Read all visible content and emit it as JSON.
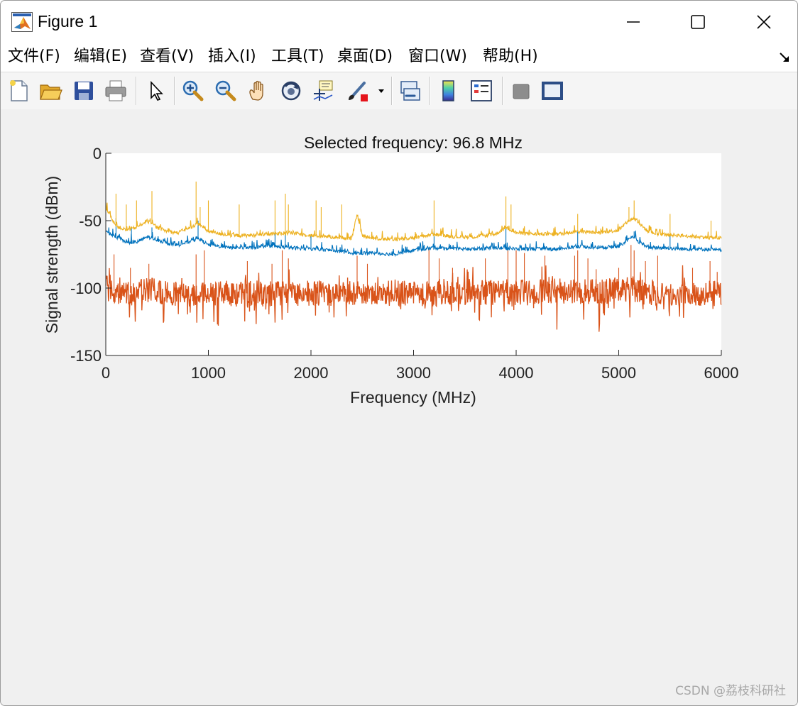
{
  "window": {
    "title": "Figure 1",
    "controls": {
      "minimize": "—",
      "maximize": "☐",
      "close": "✕"
    }
  },
  "menu": [
    {
      "label": "文件(F)"
    },
    {
      "label": "编辑(E)"
    },
    {
      "label": "查看(V)"
    },
    {
      "label": "插入(I)"
    },
    {
      "label": "工具(T)"
    },
    {
      "label": "桌面(D)"
    },
    {
      "label": "窗口(W)"
    },
    {
      "label": "帮助(H)"
    }
  ],
  "toolbar": [
    {
      "icon": "new-figure-icon"
    },
    {
      "icon": "open-file-icon"
    },
    {
      "icon": "save-icon"
    },
    {
      "icon": "print-icon"
    },
    {
      "icon": "edit-plot-arrow-icon"
    },
    {
      "icon": "zoom-in-icon"
    },
    {
      "icon": "zoom-out-icon"
    },
    {
      "icon": "pan-hand-icon"
    },
    {
      "icon": "rotate-3d-icon"
    },
    {
      "icon": "data-cursor-icon"
    },
    {
      "icon": "brush-icon"
    },
    {
      "icon": "link-plot-icon"
    },
    {
      "icon": "colorbar-icon"
    },
    {
      "icon": "legend-icon"
    },
    {
      "icon": "hide-plot-tools-icon"
    },
    {
      "icon": "show-plot-tools-icon"
    }
  ],
  "chart_data": {
    "type": "line",
    "title": "Selected frequency: 96.8 MHz",
    "xlabel": "Frequency (MHz)",
    "ylabel": "Signal strength (dBm)",
    "xlim": [
      0,
      6000
    ],
    "ylim": [
      -150,
      0
    ],
    "xticks": [
      0,
      1000,
      2000,
      3000,
      4000,
      5000,
      6000
    ],
    "yticks": [
      0,
      -50,
      -100,
      -150
    ],
    "grid": false,
    "legend": "none",
    "series": [
      {
        "color": "#EDB120",
        "x": [
          0,
          100,
          200,
          300,
          400,
          500,
          600,
          700,
          800,
          900,
          1000,
          1200,
          1400,
          1600,
          1800,
          2000,
          2200,
          2400,
          2450,
          2500,
          2600,
          2800,
          3000,
          3200,
          3400,
          3600,
          3800,
          3900,
          4000,
          4200,
          4400,
          4600,
          4800,
          5000,
          5100,
          5150,
          5200,
          5300,
          5400,
          5600,
          5800,
          6000
        ],
        "values": [
          -40,
          -54,
          -57,
          -55,
          -50,
          -55,
          -58,
          -59,
          -56,
          -52,
          -58,
          -61,
          -61,
          -60,
          -59,
          -61,
          -62,
          -63,
          -45,
          -61,
          -63,
          -64,
          -63,
          -60,
          -62,
          -62,
          -60,
          -55,
          -59,
          -60,
          -60,
          -58,
          -59,
          -57,
          -50,
          -48,
          -52,
          -59,
          -60,
          -61,
          -62,
          -63
        ],
        "spikes": [
          [
            100,
            -30
          ],
          [
            200,
            -38
          ],
          [
            300,
            -35
          ],
          [
            450,
            -28
          ],
          [
            880,
            -21
          ],
          [
            920,
            -40
          ],
          [
            1000,
            -35
          ],
          [
            1300,
            -38
          ],
          [
            1650,
            -35
          ],
          [
            1750,
            -30
          ],
          [
            1780,
            -38
          ],
          [
            2050,
            -35
          ],
          [
            2100,
            -40
          ],
          [
            2300,
            -38
          ],
          [
            3200,
            -35
          ],
          [
            3900,
            -32
          ],
          [
            3950,
            -38
          ],
          [
            4600,
            -45
          ],
          [
            5100,
            -40
          ],
          [
            5150,
            -35
          ],
          [
            5500,
            -45
          ],
          [
            5900,
            -50
          ]
        ]
      },
      {
        "color": "#0072BD",
        "x": [
          0,
          100,
          200,
          300,
          400,
          500,
          600,
          700,
          800,
          900,
          1000,
          1200,
          1400,
          1600,
          1800,
          2000,
          2200,
          2400,
          2600,
          2800,
          3000,
          3200,
          3400,
          3600,
          3800,
          4000,
          4200,
          4400,
          4600,
          4800,
          5000,
          5100,
          5150,
          5200,
          5300,
          5400,
          5600,
          5800,
          6000
        ],
        "values": [
          -58,
          -62,
          -66,
          -66,
          -62,
          -64,
          -67,
          -68,
          -66,
          -63,
          -68,
          -70,
          -70,
          -69,
          -70,
          -71,
          -72,
          -74,
          -74,
          -75,
          -72,
          -70,
          -71,
          -71,
          -70,
          -71,
          -71,
          -71,
          -69,
          -70,
          -69,
          -64,
          -62,
          -66,
          -70,
          -70,
          -71,
          -71,
          -72
        ],
        "spikes": [
          [
            100,
            -48
          ],
          [
            250,
            -55
          ],
          [
            450,
            -55
          ],
          [
            900,
            -50
          ],
          [
            1650,
            -58
          ],
          [
            1750,
            -60
          ],
          [
            2000,
            -60
          ],
          [
            3200,
            -58
          ],
          [
            3900,
            -56
          ],
          [
            4600,
            -58
          ],
          [
            5150,
            -58
          ],
          [
            5500,
            -60
          ]
        ]
      },
      {
        "color": "#D95319",
        "x": [
          0,
          100,
          200,
          300,
          400,
          500,
          600,
          800,
          1000,
          1200,
          1400,
          1600,
          1800,
          2000,
          2200,
          2400,
          2600,
          2800,
          3000,
          3200,
          3400,
          3600,
          3800,
          4000,
          4200,
          4400,
          4600,
          4800,
          5000,
          5100,
          5200,
          5300,
          5400,
          5600,
          5800,
          6000
        ],
        "values": [
          -100,
          -103,
          -104,
          -103,
          -101,
          -103,
          -104,
          -104,
          -104,
          -104,
          -104,
          -104,
          -104,
          -104,
          -104,
          -103,
          -104,
          -104,
          -104,
          -104,
          -104,
          -104,
          -103,
          -103,
          -103,
          -102,
          -102,
          -103,
          -101,
          -100,
          -102,
          -103,
          -104,
          -104,
          -104,
          -104
        ],
        "noise": 12,
        "spikes": [
          [
            80,
            -75
          ],
          [
            240,
            -85
          ],
          [
            420,
            -82
          ],
          [
            880,
            -75
          ],
          [
            960,
            -72
          ],
          [
            1380,
            -80
          ],
          [
            1620,
            -82
          ],
          [
            1720,
            -72
          ],
          [
            1780,
            -78
          ],
          [
            2450,
            -76
          ],
          [
            2550,
            -82
          ],
          [
            3150,
            -70
          ],
          [
            3250,
            -78
          ],
          [
            3380,
            -85
          ],
          [
            3700,
            -78
          ],
          [
            3920,
            -72
          ],
          [
            4000,
            -72
          ],
          [
            4080,
            -74
          ],
          [
            4280,
            -76
          ],
          [
            4570,
            -76
          ],
          [
            4600,
            -72
          ],
          [
            4700,
            -78
          ],
          [
            4780,
            -86
          ],
          [
            5000,
            -85
          ],
          [
            5120,
            -68
          ],
          [
            5150,
            -72
          ],
          [
            5260,
            -80
          ],
          [
            5380,
            -76
          ],
          [
            5720,
            -85
          ],
          [
            5890,
            -80
          ],
          [
            5960,
            -88
          ]
        ]
      }
    ]
  },
  "watermark": "CSDN @荔枝科研社"
}
